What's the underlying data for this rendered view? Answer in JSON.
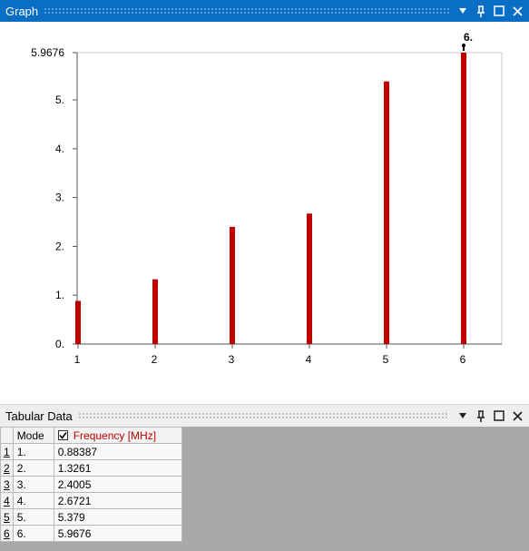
{
  "graph_panel": {
    "title": "Graph",
    "controls": [
      "dropdown-icon",
      "pin-icon",
      "maximize-icon",
      "close-icon"
    ]
  },
  "chart_data": {
    "type": "bar",
    "categories": [
      "1",
      "2",
      "3",
      "4",
      "5",
      "6"
    ],
    "values": [
      0.88387,
      1.3261,
      2.4005,
      2.6721,
      5.379,
      5.9676
    ],
    "xlabel": "",
    "ylabel": "",
    "ylim": [
      0,
      5.9676
    ],
    "yticks": [
      0,
      1,
      2,
      3,
      4,
      5,
      5.9676
    ],
    "ytick_labels": [
      "0.",
      "1.",
      "2.",
      "3.",
      "4.",
      "5.",
      "5.9676"
    ],
    "marker_label": "6.",
    "bar_color": "#c00000",
    "grid": false
  },
  "tabular_panel": {
    "title": "Tabular Data",
    "columns": {
      "mode": "Mode",
      "frequency": "Frequency [MHz]"
    },
    "frequency_checked": true,
    "rows": [
      {
        "index": "1",
        "mode": "1.",
        "frequency": "0.88387"
      },
      {
        "index": "2",
        "mode": "2.",
        "frequency": "1.3261"
      },
      {
        "index": "3",
        "mode": "3.",
        "frequency": "2.4005"
      },
      {
        "index": "4",
        "mode": "4.",
        "frequency": "2.6721"
      },
      {
        "index": "5",
        "mode": "5.",
        "frequency": "5.379"
      },
      {
        "index": "6",
        "mode": "6.",
        "frequency": "5.9676"
      }
    ]
  }
}
